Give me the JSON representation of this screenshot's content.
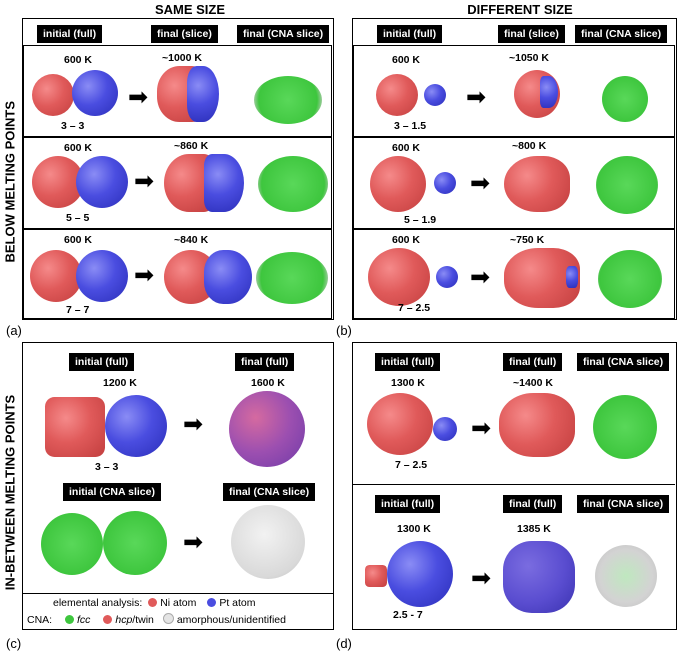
{
  "headers": {
    "same_size": "SAME SIZE",
    "different_size": "DIFFERENT SIZE"
  },
  "side_labels": {
    "below": "BELOW MELTING POINTS",
    "between": "IN-BETWEEN MELTING POINTS"
  },
  "panel_labels": {
    "a": "(a)",
    "b": "(b)",
    "c": "(c)",
    "d": "(d)"
  },
  "panel_a": {
    "cols": [
      "initial (full)",
      "final (slice)",
      "final (CNA slice)"
    ],
    "rows": [
      {
        "temp_initial": "600 K",
        "temp_final": "~1000 K",
        "size": "3 – 3"
      },
      {
        "temp_initial": "600 K",
        "temp_final": "~860 K",
        "size": "5 – 5"
      },
      {
        "temp_initial": "600 K",
        "temp_final": "~840 K",
        "size": "7 – 7"
      }
    ]
  },
  "panel_b": {
    "cols": [
      "initial (full)",
      "final (slice)",
      "final (CNA slice)"
    ],
    "rows": [
      {
        "temp_initial": "600 K",
        "temp_final": "~1050 K",
        "size": "3 – 1.5"
      },
      {
        "temp_initial": "600 K",
        "temp_final": "~800 K",
        "size": "5 – 1.9"
      },
      {
        "temp_initial": "600 K",
        "temp_final": "~750 K",
        "size": "7 – 2.5"
      }
    ]
  },
  "panel_c": {
    "top_cols": [
      "initial (full)",
      "final (full)"
    ],
    "bottom_cols": [
      "initial (CNA slice)",
      "final (CNA slice)"
    ],
    "temp_initial": "1200 K",
    "temp_final": "1600 K",
    "size": "3 – 3"
  },
  "panel_d": {
    "cols": [
      "initial (full)",
      "final (full)",
      "final (CNA slice)"
    ],
    "rows": [
      {
        "temp_initial": "1300 K",
        "temp_final": "~1400 K",
        "size": "7 – 2.5"
      },
      {
        "temp_initial": "1300 K",
        "temp_final": "1385 K",
        "size": "2.5 - 7"
      }
    ]
  },
  "legend": {
    "elemental_label": "elemental analysis:",
    "ni": "Ni atom",
    "pt": "Pt atom",
    "cna_label": "CNA:",
    "fcc": "fcc",
    "hcp": "hcp",
    "twin": "/twin",
    "amorphous": "amorphous/unidentified"
  },
  "colors": {
    "ni": "#e05a5a",
    "pt": "#4a4de0",
    "fcc": "#3ec63e",
    "hcp": "#e05a5a",
    "amorphous": "#d9d9d9"
  }
}
